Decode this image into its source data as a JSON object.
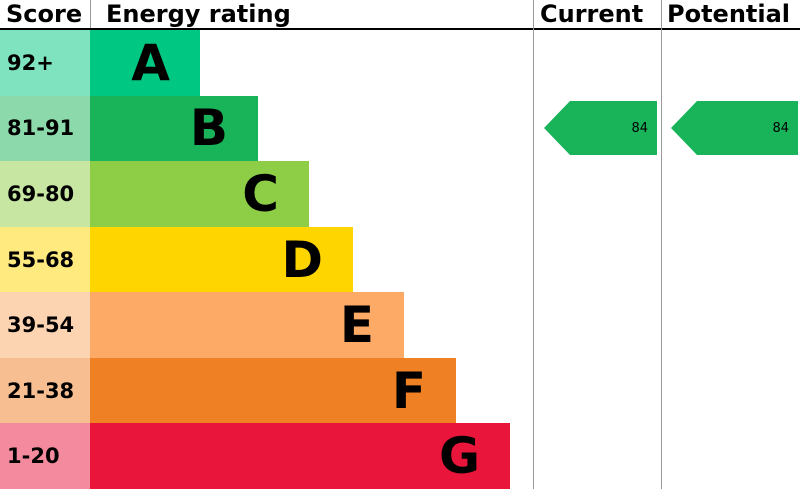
{
  "header": {
    "score": "Score",
    "energy_rating": "Energy rating",
    "current": "Current",
    "potential": "Potential"
  },
  "chart_data": {
    "type": "bar",
    "subtype": "epc-energy-rating",
    "orientation": "horizontal",
    "columns": [
      "Score",
      "Energy rating",
      "Current",
      "Potential"
    ],
    "bands": [
      {
        "score": "92+",
        "letter": "A",
        "color": "#00c781",
        "tint": "#80e3c0"
      },
      {
        "score": "81-91",
        "letter": "B",
        "color": "#19b459",
        "tint": "#8cd9ac"
      },
      {
        "score": "69-80",
        "letter": "C",
        "color": "#8dce46",
        "tint": "#c6e6a2"
      },
      {
        "score": "55-68",
        "letter": "D",
        "color": "#ffd500",
        "tint": "#ffea80"
      },
      {
        "score": "39-54",
        "letter": "E",
        "color": "#fcaa65",
        "tint": "#fdd4b2"
      },
      {
        "score": "21-38",
        "letter": "F",
        "color": "#ef8023",
        "tint": "#f7bf91"
      },
      {
        "score": "1-20",
        "letter": "G",
        "color": "#e9153b",
        "tint": "#f48a9d"
      }
    ],
    "current": {
      "value": "84",
      "band": "B",
      "color": "#19b459"
    },
    "potential": {
      "value": "84",
      "band": "B",
      "color": "#19b459"
    }
  }
}
